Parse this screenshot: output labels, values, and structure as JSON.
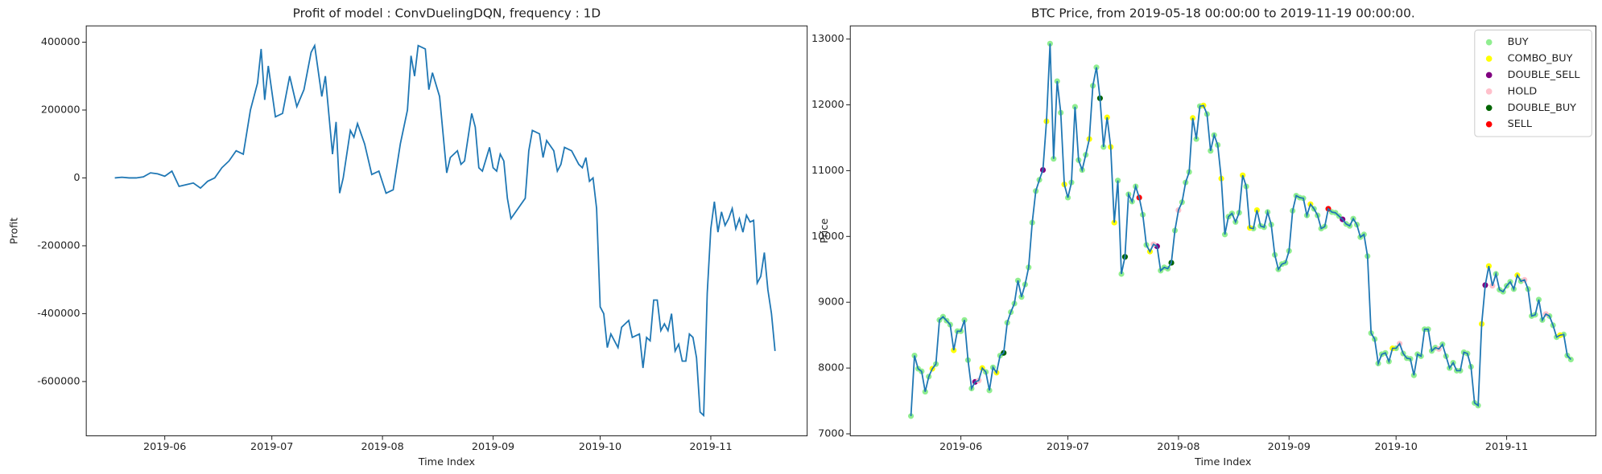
{
  "chart_data": [
    {
      "type": "line",
      "title": "Profit of model : ConvDuelingDQN, frequency : 1D",
      "xlabel": "Time Index",
      "ylabel": "Profit",
      "color": "#1f77b4",
      "x": [
        "2019-05-18",
        "2019-05-20",
        "2019-05-22",
        "2019-05-24",
        "2019-05-26",
        "2019-05-28",
        "2019-05-30",
        "2019-06-01",
        "2019-06-03",
        "2019-06-05",
        "2019-06-07",
        "2019-06-09",
        "2019-06-11",
        "2019-06-13",
        "2019-06-15",
        "2019-06-17",
        "2019-06-19",
        "2019-06-21",
        "2019-06-23",
        "2019-06-25",
        "2019-06-27",
        "2019-06-28",
        "2019-06-29",
        "2019-06-30",
        "2019-07-02",
        "2019-07-04",
        "2019-07-06",
        "2019-07-08",
        "2019-07-10",
        "2019-07-12",
        "2019-07-13",
        "2019-07-15",
        "2019-07-16",
        "2019-07-18",
        "2019-07-19",
        "2019-07-20",
        "2019-07-21",
        "2019-07-23",
        "2019-07-24",
        "2019-07-25",
        "2019-07-27",
        "2019-07-29",
        "2019-07-31",
        "2019-08-02",
        "2019-08-04",
        "2019-08-06",
        "2019-08-08",
        "2019-08-09",
        "2019-08-10",
        "2019-08-11",
        "2019-08-13",
        "2019-08-14",
        "2019-08-15",
        "2019-08-17",
        "2019-08-19",
        "2019-08-20",
        "2019-08-22",
        "2019-08-23",
        "2019-08-24",
        "2019-08-26",
        "2019-08-27",
        "2019-08-28",
        "2019-08-29",
        "2019-08-31",
        "2019-09-01",
        "2019-09-02",
        "2019-09-03",
        "2019-09-04",
        "2019-09-05",
        "2019-09-06",
        "2019-09-08",
        "2019-09-10",
        "2019-09-11",
        "2019-09-12",
        "2019-09-14",
        "2019-09-15",
        "2019-09-16",
        "2019-09-18",
        "2019-09-19",
        "2019-09-20",
        "2019-09-21",
        "2019-09-23",
        "2019-09-25",
        "2019-09-26",
        "2019-09-27",
        "2019-09-28",
        "2019-09-29",
        "2019-09-30",
        "2019-10-01",
        "2019-10-02",
        "2019-10-03",
        "2019-10-04",
        "2019-10-06",
        "2019-10-07",
        "2019-10-09",
        "2019-10-10",
        "2019-10-12",
        "2019-10-13",
        "2019-10-14",
        "2019-10-15",
        "2019-10-16",
        "2019-10-17",
        "2019-10-18",
        "2019-10-19",
        "2019-10-20",
        "2019-10-21",
        "2019-10-22",
        "2019-10-23",
        "2019-10-24",
        "2019-10-25",
        "2019-10-26",
        "2019-10-27",
        "2019-10-28",
        "2019-10-29",
        "2019-10-30",
        "2019-10-31",
        "2019-11-01",
        "2019-11-02",
        "2019-11-03",
        "2019-11-04",
        "2019-11-05",
        "2019-11-06",
        "2019-11-07",
        "2019-11-08",
        "2019-11-09",
        "2019-11-10",
        "2019-11-11",
        "2019-11-12",
        "2019-11-13",
        "2019-11-14",
        "2019-11-15",
        "2019-11-16",
        "2019-11-17",
        "2019-11-18",
        "2019-11-19"
      ],
      "values": [
        0,
        2000,
        0,
        0,
        3000,
        15000,
        12000,
        5000,
        20000,
        -25000,
        -20000,
        -15000,
        -30000,
        -10000,
        0,
        30000,
        50000,
        80000,
        70000,
        200000,
        280000,
        380000,
        230000,
        330000,
        180000,
        190000,
        300000,
        210000,
        260000,
        370000,
        390000,
        240000,
        300000,
        70000,
        165000,
        -45000,
        0,
        140000,
        120000,
        160000,
        100000,
        10000,
        20000,
        -45000,
        -35000,
        100000,
        200000,
        360000,
        300000,
        390000,
        380000,
        260000,
        310000,
        240000,
        15000,
        60000,
        80000,
        40000,
        50000,
        190000,
        150000,
        30000,
        20000,
        90000,
        30000,
        20000,
        70000,
        50000,
        -60000,
        -120000,
        -90000,
        -60000,
        80000,
        140000,
        130000,
        60000,
        110000,
        80000,
        20000,
        40000,
        90000,
        80000,
        40000,
        30000,
        60000,
        -10000,
        0,
        -90000,
        -380000,
        -400000,
        -500000,
        -460000,
        -500000,
        -440000,
        -420000,
        -470000,
        -460000,
        -560000,
        -470000,
        -480000,
        -360000,
        -360000,
        -450000,
        -430000,
        -450000,
        -400000,
        -510000,
        -490000,
        -540000,
        -540000,
        -460000,
        -470000,
        -530000,
        -690000,
        -700000,
        -340000,
        -150000,
        -70000,
        -160000,
        -100000,
        -140000,
        -120000,
        -90000,
        -150000,
        -120000,
        -160000,
        -110000,
        -130000,
        -125000,
        -310000,
        -290000,
        -220000,
        -330000,
        -400000,
        -510000
      ],
      "xlim": [
        "2019-05-10",
        "2019-11-28"
      ],
      "xticks": [
        {
          "value": "2019-06-01",
          "label": "2019-06"
        },
        {
          "value": "2019-07-01",
          "label": "2019-07"
        },
        {
          "value": "2019-08-01",
          "label": "2019-08"
        },
        {
          "value": "2019-09-01",
          "label": "2019-09"
        },
        {
          "value": "2019-10-01",
          "label": "2019-10"
        },
        {
          "value": "2019-11-01",
          "label": "2019-11"
        }
      ],
      "ylim": [
        -760000,
        448000
      ],
      "yticks": [
        -600000,
        -400000,
        -200000,
        0,
        200000,
        400000
      ]
    },
    {
      "type": "line",
      "title": "BTC Price, from 2019-05-18 00:00:00 to 2019-11-19 00:00:00.",
      "xlabel": "Time Index",
      "ylabel": "Price",
      "color": "#1f77b4",
      "x": [
        "2019-05-18",
        "2019-05-19",
        "2019-05-20",
        "2019-05-21",
        "2019-05-22",
        "2019-05-23",
        "2019-05-24",
        "2019-05-25",
        "2019-05-26",
        "2019-05-27",
        "2019-05-28",
        "2019-05-29",
        "2019-05-30",
        "2019-05-31",
        "2019-06-01",
        "2019-06-02",
        "2019-06-03",
        "2019-06-04",
        "2019-06-05",
        "2019-06-06",
        "2019-06-07",
        "2019-06-08",
        "2019-06-09",
        "2019-06-10",
        "2019-06-11",
        "2019-06-12",
        "2019-06-13",
        "2019-06-14",
        "2019-06-15",
        "2019-06-16",
        "2019-06-17",
        "2019-06-18",
        "2019-06-19",
        "2019-06-20",
        "2019-06-21",
        "2019-06-22",
        "2019-06-23",
        "2019-06-24",
        "2019-06-25",
        "2019-06-26",
        "2019-06-27",
        "2019-06-28",
        "2019-06-29",
        "2019-06-30",
        "2019-07-01",
        "2019-07-02",
        "2019-07-03",
        "2019-07-04",
        "2019-07-05",
        "2019-07-06",
        "2019-07-07",
        "2019-07-08",
        "2019-07-09",
        "2019-07-10",
        "2019-07-11",
        "2019-07-12",
        "2019-07-13",
        "2019-07-14",
        "2019-07-15",
        "2019-07-16",
        "2019-07-17",
        "2019-07-18",
        "2019-07-19",
        "2019-07-20",
        "2019-07-21",
        "2019-07-22",
        "2019-07-23",
        "2019-07-24",
        "2019-07-25",
        "2019-07-26",
        "2019-07-27",
        "2019-07-28",
        "2019-07-29",
        "2019-07-30",
        "2019-07-31",
        "2019-08-01",
        "2019-08-02",
        "2019-08-03",
        "2019-08-04",
        "2019-08-05",
        "2019-08-06",
        "2019-08-07",
        "2019-08-08",
        "2019-08-09",
        "2019-08-10",
        "2019-08-11",
        "2019-08-12",
        "2019-08-13",
        "2019-08-14",
        "2019-08-15",
        "2019-08-16",
        "2019-08-17",
        "2019-08-18",
        "2019-08-19",
        "2019-08-20",
        "2019-08-21",
        "2019-08-22",
        "2019-08-23",
        "2019-08-24",
        "2019-08-25",
        "2019-08-26",
        "2019-08-27",
        "2019-08-28",
        "2019-08-29",
        "2019-08-30",
        "2019-08-31",
        "2019-09-01",
        "2019-09-02",
        "2019-09-03",
        "2019-09-04",
        "2019-09-05",
        "2019-09-06",
        "2019-09-07",
        "2019-09-08",
        "2019-09-09",
        "2019-09-10",
        "2019-09-11",
        "2019-09-12",
        "2019-09-13",
        "2019-09-14",
        "2019-09-15",
        "2019-09-16",
        "2019-09-17",
        "2019-09-18",
        "2019-09-19",
        "2019-09-20",
        "2019-09-21",
        "2019-09-22",
        "2019-09-23",
        "2019-09-24",
        "2019-09-25",
        "2019-09-26",
        "2019-09-27",
        "2019-09-28",
        "2019-09-29",
        "2019-09-30",
        "2019-10-01",
        "2019-10-02",
        "2019-10-03",
        "2019-10-04",
        "2019-10-05",
        "2019-10-06",
        "2019-10-07",
        "2019-10-08",
        "2019-10-09",
        "2019-10-10",
        "2019-10-11",
        "2019-10-12",
        "2019-10-13",
        "2019-10-14",
        "2019-10-15",
        "2019-10-16",
        "2019-10-17",
        "2019-10-18",
        "2019-10-19",
        "2019-10-20",
        "2019-10-21",
        "2019-10-22",
        "2019-10-23",
        "2019-10-24",
        "2019-10-25",
        "2019-10-26",
        "2019-10-27",
        "2019-10-28",
        "2019-10-29",
        "2019-10-30",
        "2019-10-31",
        "2019-11-01",
        "2019-11-02",
        "2019-11-03",
        "2019-11-04",
        "2019-11-05",
        "2019-11-06",
        "2019-11-07",
        "2019-11-08",
        "2019-11-09",
        "2019-11-10",
        "2019-11-11",
        "2019-11-12",
        "2019-11-13",
        "2019-11-14",
        "2019-11-15",
        "2019-11-16",
        "2019-11-17",
        "2019-11-18",
        "2019-11-19"
      ],
      "values": [
        7270,
        8190,
        7990,
        7950,
        7640,
        7870,
        7990,
        8060,
        8730,
        8780,
        8720,
        8660,
        8270,
        8560,
        8560,
        8730,
        8120,
        7690,
        7790,
        7810,
        8000,
        7940,
        7660,
        8010,
        7930,
        8190,
        8230,
        8690,
        8850,
        8980,
        9330,
        9080,
        9270,
        9530,
        10210,
        10690,
        10860,
        11010,
        11750,
        12930,
        11180,
        12360,
        11880,
        10790,
        10590,
        10820,
        11970,
        11160,
        11010,
        11240,
        11480,
        12290,
        12570,
        12100,
        11360,
        11810,
        11360,
        10210,
        10850,
        9430,
        9690,
        10640,
        10530,
        10760,
        10590,
        10330,
        9870,
        9770,
        9880,
        9850,
        9480,
        9530,
        9510,
        9600,
        10090,
        10400,
        10520,
        10820,
        10980,
        11800,
        11480,
        11980,
        11990,
        11860,
        11300,
        11540,
        11390,
        10880,
        10030,
        10300,
        10350,
        10220,
        10360,
        10930,
        10760,
        10130,
        10120,
        10400,
        10160,
        10140,
        10370,
        10180,
        9720,
        9500,
        9580,
        9600,
        9780,
        10390,
        10620,
        10590,
        10580,
        10320,
        10490,
        10420,
        10320,
        10120,
        10150,
        10420,
        10370,
        10360,
        10310,
        10260,
        10190,
        10160,
        10270,
        10180,
        9990,
        10030,
        9700,
        8530,
        8440,
        8070,
        8210,
        8230,
        8100,
        8300,
        8300,
        8370,
        8220,
        8150,
        8140,
        7890,
        8210,
        8180,
        8590,
        8590,
        8260,
        8310,
        8290,
        8360,
        8180,
        8000,
        8080,
        7960,
        7960,
        8240,
        8220,
        8020,
        7470,
        7430,
        8670,
        9260,
        9550,
        9250,
        9430,
        9190,
        9160,
        9250,
        9310,
        9200,
        9410,
        9320,
        9340,
        9200,
        8790,
        8810,
        9040,
        8730,
        8820,
        8790,
        8650,
        8470,
        8500,
        8510,
        8190,
        8130
      ],
      "markers": [
        {
          "name": "BUY",
          "color": "#90ee90",
          "x": [
            "2019-05-18",
            "2019-05-19",
            "2019-05-20",
            "2019-05-21",
            "2019-05-22",
            "2019-05-23",
            "2019-05-25",
            "2019-05-26",
            "2019-05-27",
            "2019-05-28",
            "2019-05-29",
            "2019-05-31",
            "2019-06-01",
            "2019-06-02",
            "2019-06-03",
            "2019-06-04",
            "2019-06-08",
            "2019-06-09",
            "2019-06-10",
            "2019-06-12",
            "2019-06-14",
            "2019-06-15",
            "2019-06-16",
            "2019-06-17",
            "2019-06-18",
            "2019-06-19",
            "2019-06-20",
            "2019-06-21",
            "2019-06-22",
            "2019-06-23",
            "2019-06-26",
            "2019-06-27",
            "2019-06-28",
            "2019-06-29",
            "2019-07-01",
            "2019-07-02",
            "2019-07-03",
            "2019-07-04",
            "2019-07-05",
            "2019-07-06",
            "2019-07-08",
            "2019-07-09",
            "2019-07-11",
            "2019-07-15",
            "2019-07-16",
            "2019-07-18",
            "2019-07-19",
            "2019-07-20",
            "2019-07-22",
            "2019-07-23",
            "2019-07-27",
            "2019-07-28",
            "2019-07-29",
            "2019-07-31",
            "2019-08-02",
            "2019-08-03",
            "2019-08-04",
            "2019-08-06",
            "2019-08-07",
            "2019-08-09",
            "2019-08-10",
            "2019-08-11",
            "2019-08-12",
            "2019-08-14",
            "2019-08-15",
            "2019-08-16",
            "2019-08-17",
            "2019-08-18",
            "2019-08-20",
            "2019-08-22",
            "2019-08-24",
            "2019-08-25",
            "2019-08-26",
            "2019-08-27",
            "2019-08-28",
            "2019-08-29",
            "2019-08-30",
            "2019-08-31",
            "2019-09-01",
            "2019-09-02",
            "2019-09-03",
            "2019-09-04",
            "2019-09-05",
            "2019-09-06",
            "2019-09-08",
            "2019-09-09",
            "2019-09-10",
            "2019-09-11",
            "2019-09-13",
            "2019-09-14",
            "2019-09-15",
            "2019-09-17",
            "2019-09-18",
            "2019-09-19",
            "2019-09-20",
            "2019-09-21",
            "2019-09-22",
            "2019-09-23",
            "2019-09-24",
            "2019-09-25",
            "2019-09-26",
            "2019-09-27",
            "2019-09-28",
            "2019-09-29",
            "2019-10-01",
            "2019-10-03",
            "2019-10-04",
            "2019-10-05",
            "2019-10-06",
            "2019-10-07",
            "2019-10-08",
            "2019-10-09",
            "2019-10-10",
            "2019-10-11",
            "2019-10-12",
            "2019-10-14",
            "2019-10-15",
            "2019-10-16",
            "2019-10-17",
            "2019-10-18",
            "2019-10-19",
            "2019-10-20",
            "2019-10-21",
            "2019-10-22",
            "2019-10-23",
            "2019-10-24",
            "2019-10-29",
            "2019-10-30",
            "2019-10-31",
            "2019-11-01",
            "2019-11-02",
            "2019-11-03",
            "2019-11-05",
            "2019-11-07",
            "2019-11-08",
            "2019-11-09",
            "2019-11-10",
            "2019-11-11",
            "2019-11-13",
            "2019-11-14",
            "2019-11-15",
            "2019-11-17",
            "2019-11-18",
            "2019-11-19"
          ]
        },
        {
          "name": "COMBO_BUY",
          "color": "#ffff00",
          "x": [
            "2019-05-24",
            "2019-05-30",
            "2019-06-07",
            "2019-06-11",
            "2019-06-25",
            "2019-06-30",
            "2019-07-07",
            "2019-07-12",
            "2019-07-13",
            "2019-07-14",
            "2019-07-24",
            "2019-08-05",
            "2019-08-08",
            "2019-08-13",
            "2019-08-19",
            "2019-08-21",
            "2019-08-23",
            "2019-09-07",
            "2019-09-30",
            "2019-10-25",
            "2019-10-27",
            "2019-11-04",
            "2019-11-16"
          ]
        },
        {
          "name": "DOUBLE_SELL",
          "color": "#800080",
          "x": [
            "2019-06-05",
            "2019-06-24",
            "2019-07-26",
            "2019-09-16",
            "2019-10-26"
          ]
        },
        {
          "name": "HOLD",
          "color": "#ffc0cb",
          "x": [
            "2019-06-06",
            "2019-07-25",
            "2019-08-01",
            "2019-10-02",
            "2019-10-13",
            "2019-10-28",
            "2019-11-06",
            "2019-11-12"
          ]
        },
        {
          "name": "DOUBLE_BUY",
          "color": "#006400",
          "x": [
            "2019-06-13",
            "2019-07-10",
            "2019-07-17",
            "2019-07-30"
          ]
        },
        {
          "name": "SELL",
          "color": "#ff0000",
          "x": [
            "2019-07-21",
            "2019-09-12"
          ]
        }
      ],
      "legend": "upper right",
      "xlim": [
        "2019-05-01",
        "2019-11-26"
      ],
      "xticks": [
        {
          "value": "2019-06-01",
          "label": "2019-06"
        },
        {
          "value": "2019-07-01",
          "label": "2019-07"
        },
        {
          "value": "2019-08-01",
          "label": "2019-08"
        },
        {
          "value": "2019-09-01",
          "label": "2019-09"
        },
        {
          "value": "2019-10-01",
          "label": "2019-10"
        },
        {
          "value": "2019-11-01",
          "label": "2019-11"
        }
      ],
      "ylim": [
        6970,
        13200
      ],
      "yticks": [
        7000,
        8000,
        9000,
        10000,
        11000,
        12000,
        13000
      ]
    }
  ]
}
